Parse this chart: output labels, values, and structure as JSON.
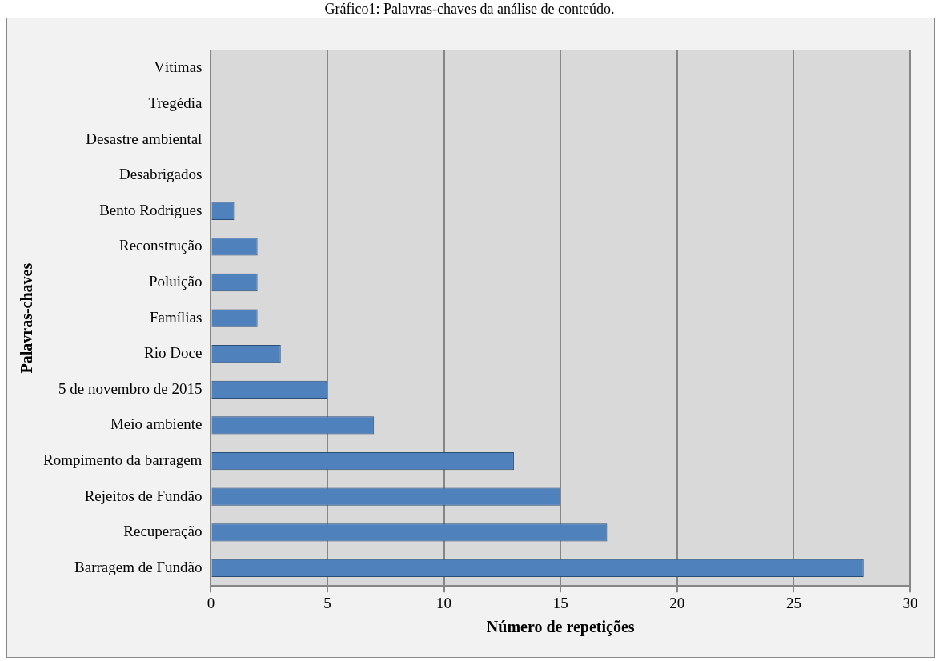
{
  "chart_data": {
    "type": "bar",
    "orientation": "horizontal",
    "title": "Gráfico1: Palavras-chaves da análise de conteúdo.",
    "xlabel": "Número de repetições",
    "ylabel": "Palavras-chaves",
    "categories": [
      "Vítimas",
      "Tregédia",
      "Desastre ambiental",
      "Desabrigados",
      "Bento Rodrigues",
      "Reconstrução",
      "Poluição",
      "Famílias",
      "Rio Doce",
      "5 de novembro de 2015",
      "Meio ambiente",
      "Rompimento da barragem",
      "Rejeitos de Fundão",
      "Recuperação",
      "Barragem de Fundão"
    ],
    "values": [
      0,
      0,
      0,
      0,
      1,
      2,
      2,
      2,
      3,
      5,
      7,
      13,
      15,
      17,
      28
    ],
    "color": "#4f81bd",
    "xlim": [
      0,
      30
    ],
    "xticks": [
      0,
      5,
      10,
      15,
      20,
      25,
      30
    ],
    "grid": "x",
    "legend": false
  }
}
